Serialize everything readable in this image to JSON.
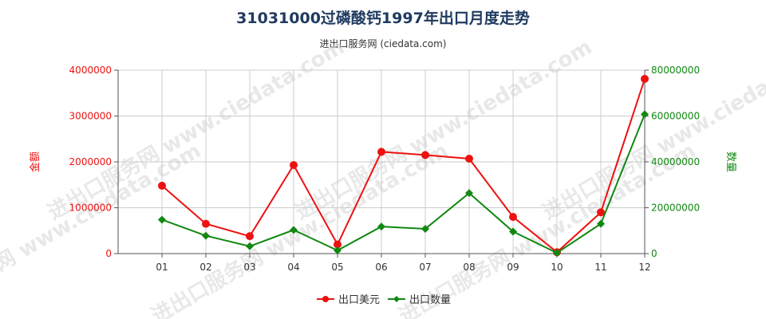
{
  "title": "31031000过磷酸钙1997年出口月度走势",
  "subtitle": "进出口服务网 (ciedata.com)",
  "watermark": "进出口服务网 www.ciedata.com",
  "colors": {
    "usd": "#ee1111",
    "qty": "#118811",
    "grid": "#cccccc",
    "axis": "#555555",
    "watermark": "#d7d7d7"
  },
  "chart_data": {
    "type": "line",
    "categories": [
      "01",
      "02",
      "03",
      "04",
      "05",
      "06",
      "07",
      "08",
      "09",
      "10",
      "11",
      "12"
    ],
    "series": [
      {
        "name": "出口美元",
        "axis": "left",
        "values": [
          1480000,
          650000,
          380000,
          1930000,
          200000,
          2220000,
          2150000,
          2070000,
          800000,
          30000,
          900000,
          3810000
        ]
      },
      {
        "name": "出口数量",
        "axis": "right",
        "values": [
          14800000,
          7800000,
          3200000,
          10300000,
          1400000,
          11800000,
          10800000,
          26400000,
          9600000,
          300000,
          13000000,
          60800000
        ]
      }
    ],
    "y_left": {
      "label": "金额",
      "range": [
        0,
        4000000
      ],
      "ticks": [
        "0",
        "1000000",
        "2000000",
        "3000000",
        "4000000"
      ]
    },
    "y_right": {
      "label": "数量",
      "range": [
        0,
        80000000
      ],
      "ticks": [
        "0",
        "20000000",
        "40000000",
        "60000000",
        "80000000"
      ]
    },
    "grid": true,
    "legend": "bottom"
  }
}
